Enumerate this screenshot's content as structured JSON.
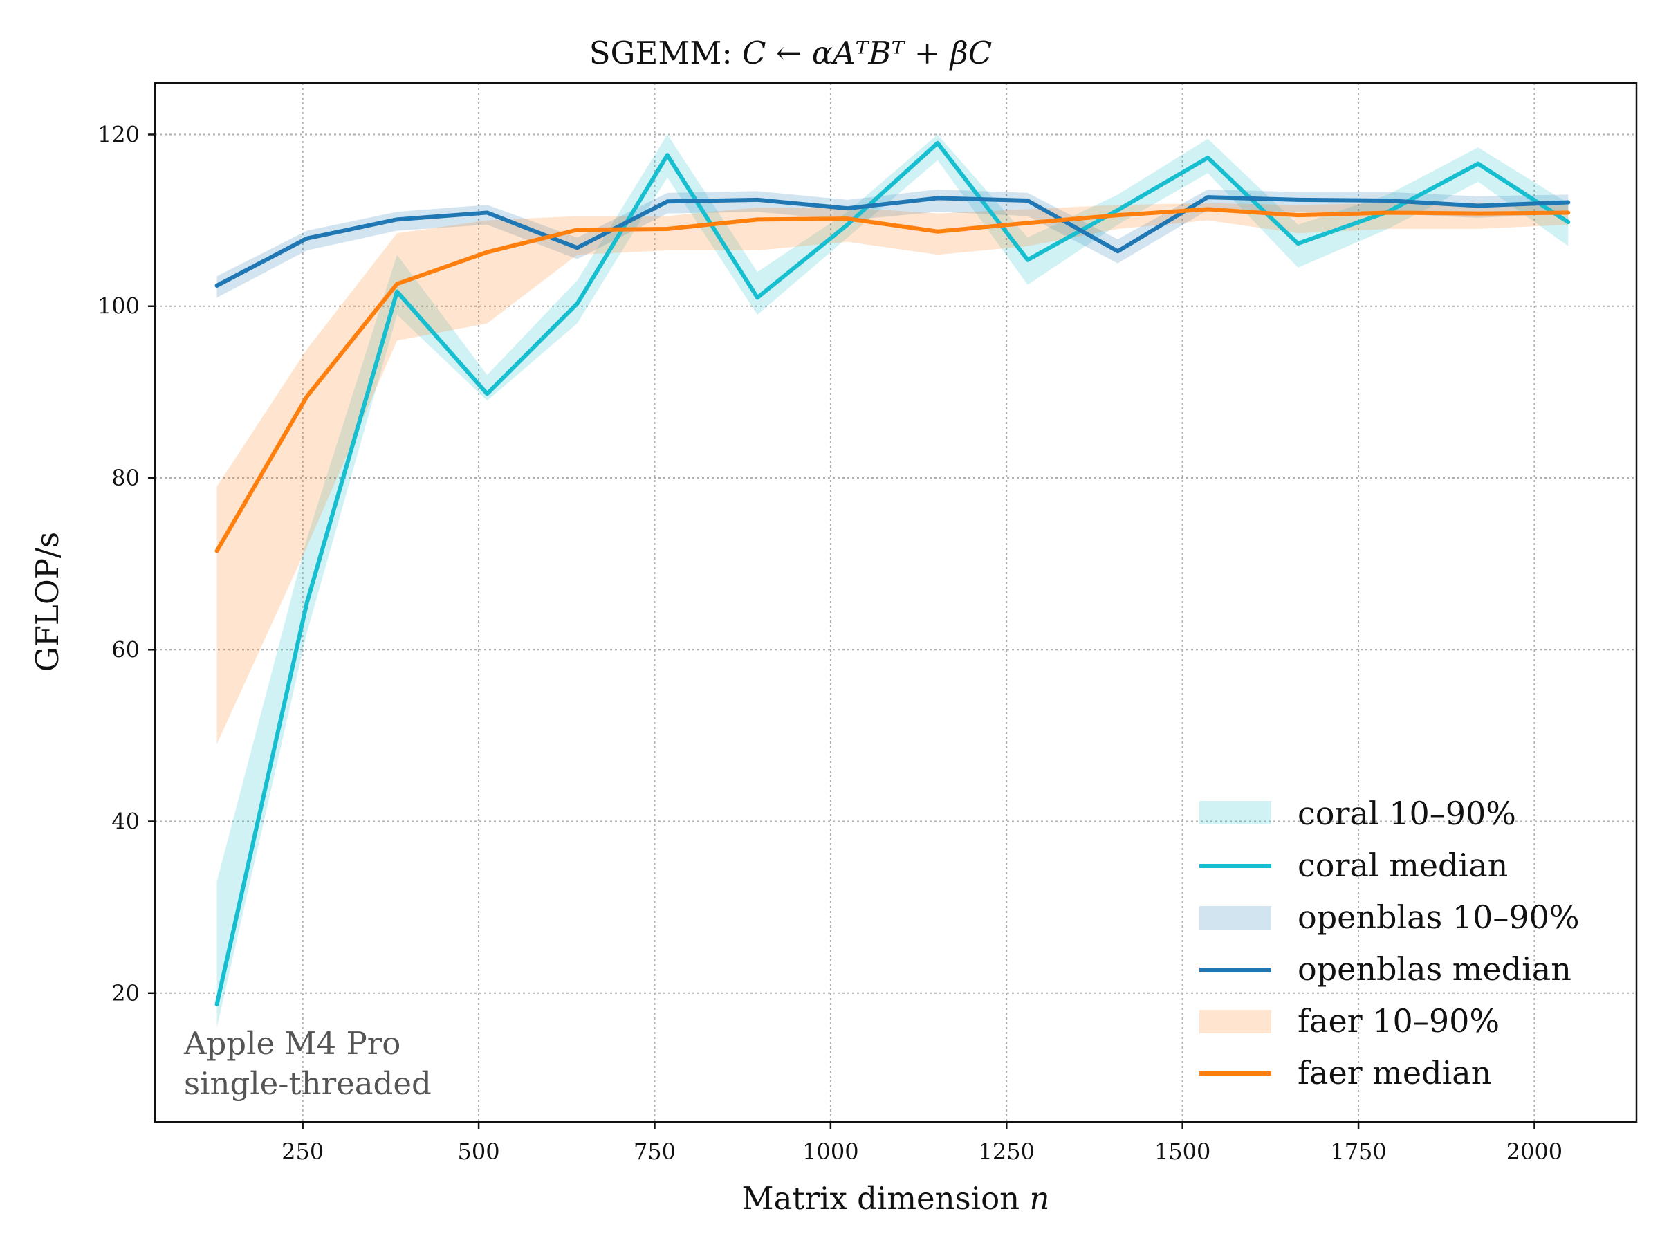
{
  "chart_data": {
    "type": "line",
    "title": "SGEMM: C ← αAᵀBᵀ + βC",
    "title_parts": {
      "prefix": "SGEMM: ",
      "math": "C ← αAᵀBᵀ + βC"
    },
    "xlabel": "Matrix dimension n",
    "xlabel_parts": {
      "text": "Matrix dimension ",
      "var": "n"
    },
    "ylabel": "GFLOP/s",
    "xlim": [
      40,
      2145
    ],
    "ylim": [
      5,
      126
    ],
    "xticks": [
      250,
      500,
      750,
      1000,
      1250,
      1500,
      1750,
      2000
    ],
    "yticks": [
      20,
      40,
      60,
      80,
      100,
      120
    ],
    "grid": true,
    "legend_placement": "bottom-right",
    "annotation": [
      "Apple M4 Pro",
      "single-threaded"
    ],
    "x": [
      128,
      256,
      384,
      512,
      640,
      768,
      896,
      1024,
      1152,
      1280,
      1408,
      1536,
      1664,
      1792,
      1920,
      2048
    ],
    "series": [
      {
        "name": "coral",
        "legend_band": "coral 10–90%",
        "legend_median": "coral median",
        "color": "#17becf",
        "median": [
          18.7,
          65.5,
          101.7,
          89.8,
          100.3,
          117.6,
          101.0,
          109.5,
          119.0,
          105.4,
          111.2,
          117.3,
          107.3,
          111.0,
          116.6,
          109.8
        ],
        "p10": [
          16.0,
          62.0,
          99.0,
          89.0,
          98.0,
          115.0,
          99.0,
          108.0,
          117.0,
          102.5,
          109.5,
          115.5,
          104.5,
          109.0,
          114.5,
          107.0
        ],
        "p90": [
          33.0,
          73.0,
          106.0,
          92.0,
          103.0,
          120.0,
          104.0,
          111.0,
          120.0,
          108.0,
          113.0,
          119.5,
          109.5,
          113.0,
          118.5,
          112.0
        ]
      },
      {
        "name": "openblas",
        "legend_band": "openblas 10–90%",
        "legend_median": "openblas median",
        "color": "#1f77b4",
        "median": [
          102.4,
          107.9,
          110.1,
          110.9,
          106.8,
          112.2,
          112.4,
          111.4,
          112.6,
          112.3,
          106.4,
          112.7,
          112.4,
          112.3,
          111.7,
          112.1
        ],
        "p10": [
          101.0,
          106.5,
          108.8,
          109.5,
          105.5,
          110.8,
          111.0,
          110.0,
          111.0,
          110.5,
          105.0,
          111.2,
          111.0,
          110.8,
          110.3,
          110.8
        ],
        "p90": [
          103.5,
          108.8,
          111.0,
          111.8,
          108.0,
          113.2,
          113.4,
          112.4,
          113.6,
          113.2,
          107.8,
          113.6,
          113.3,
          113.3,
          112.8,
          113.0
        ]
      },
      {
        "name": "faer",
        "legend_band": "faer 10–90%",
        "legend_median": "faer median",
        "color": "#ff7f0e",
        "median": [
          71.5,
          89.5,
          102.6,
          106.3,
          108.9,
          109.0,
          110.1,
          110.2,
          108.7,
          109.7,
          110.6,
          111.3,
          110.6,
          110.9,
          110.8,
          110.9
        ],
        "p10": [
          49.0,
          72.0,
          96.0,
          98.0,
          106.0,
          106.5,
          106.5,
          107.5,
          106.0,
          107.0,
          109.0,
          110.0,
          108.5,
          109.0,
          109.0,
          109.5
        ],
        "p90": [
          79.0,
          95.0,
          108.5,
          110.0,
          110.5,
          110.5,
          111.5,
          111.5,
          110.8,
          111.3,
          111.8,
          112.0,
          111.8,
          112.0,
          112.0,
          112.0
        ]
      }
    ]
  }
}
